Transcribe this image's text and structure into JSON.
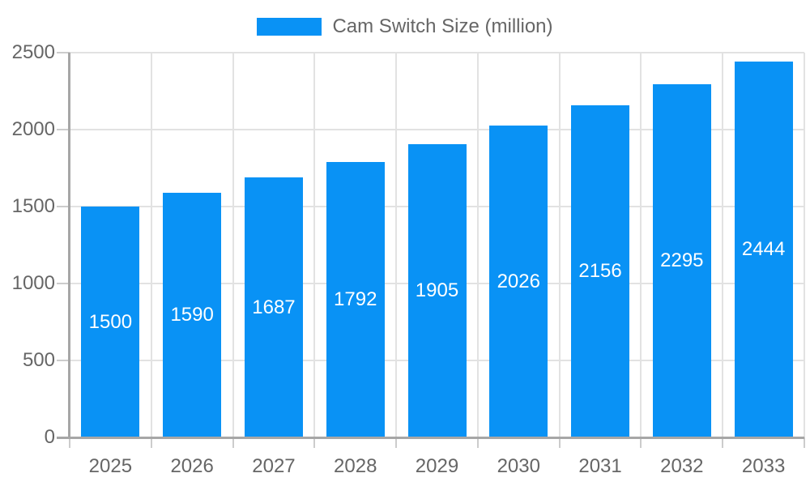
{
  "chart_data": {
    "type": "bar",
    "title": "Cam Switch Size (million)",
    "legend": {
      "label": "Cam Switch Size (million)",
      "position": "top"
    },
    "categories": [
      "2025",
      "2026",
      "2027",
      "2028",
      "2029",
      "2030",
      "2031",
      "2032",
      "2033"
    ],
    "values": [
      1500,
      1590,
      1687,
      1792,
      1905,
      2026,
      2156,
      2295,
      2444
    ],
    "xlabel": "",
    "ylabel": "",
    "ylim": [
      0,
      2500
    ],
    "yticks": [
      0,
      500,
      1000,
      1500,
      2000,
      2500
    ],
    "grid": true,
    "value_labels_position": "inside-center",
    "colors": {
      "bar": "#0992f5",
      "bar_value_text": "#ffffff",
      "axis_text": "#666666",
      "legend_text": "#666666",
      "gridline": "#e2e2e2",
      "axis_line": "#a6a6a6",
      "tick": "#cccccc",
      "background": "#ffffff"
    }
  }
}
